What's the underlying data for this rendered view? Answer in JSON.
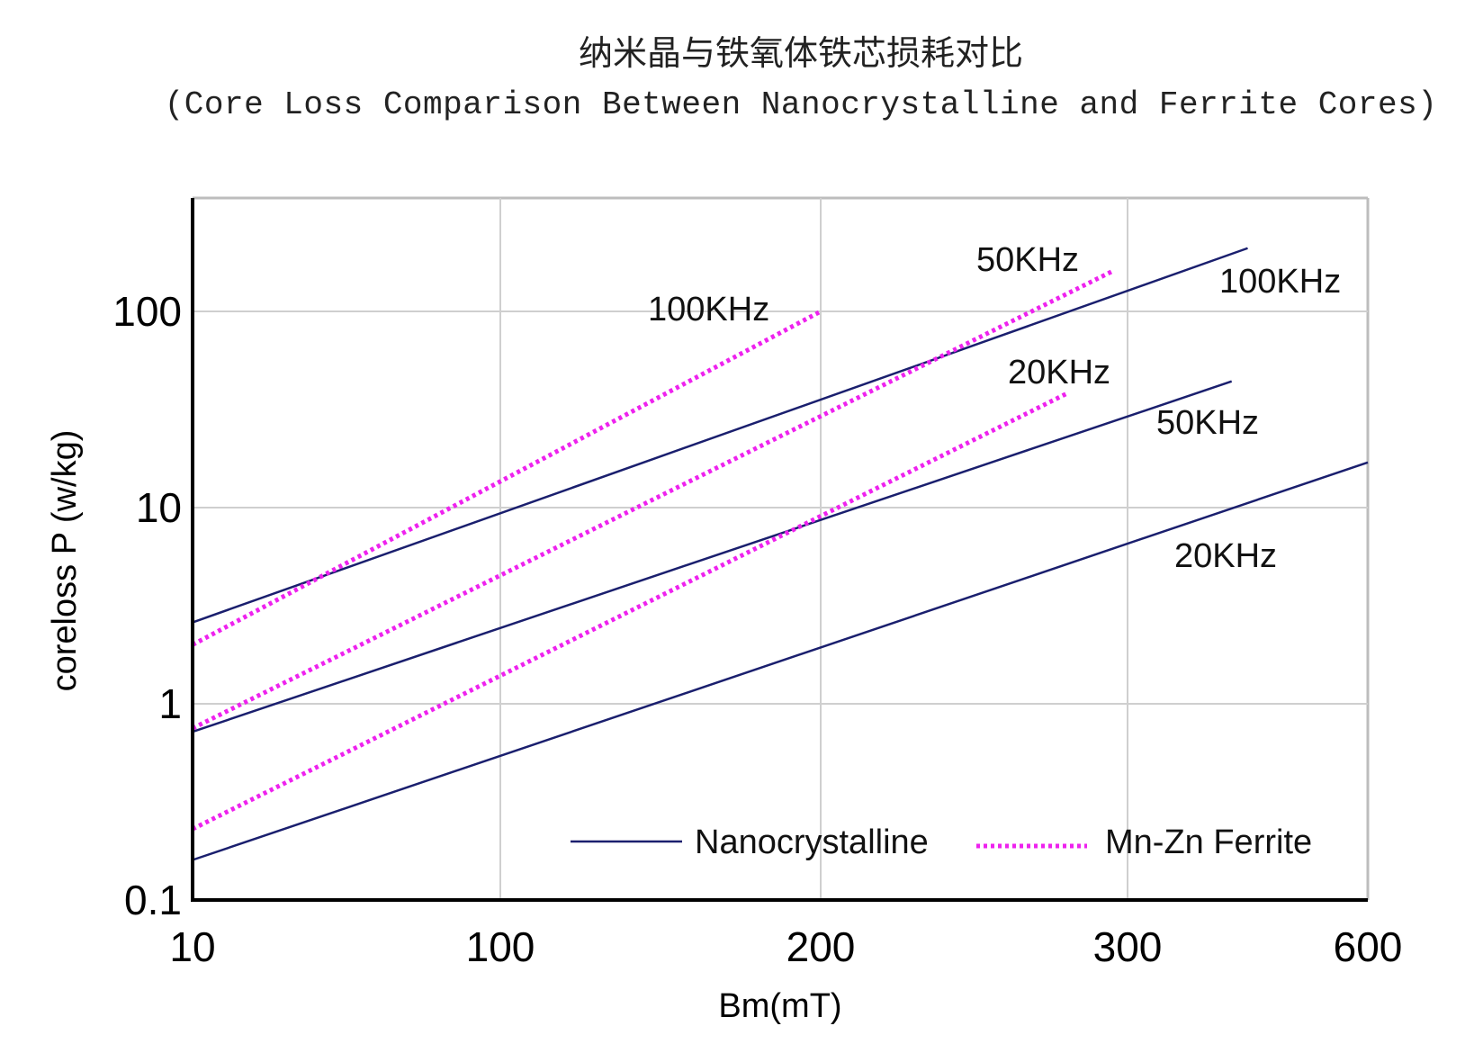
{
  "title_cn": "纳米晶与铁氧体铁芯损耗对比",
  "title_en": "(Core Loss Comparison Between Nanocrystalline and Ferrite Cores)",
  "chart_data": {
    "type": "line",
    "xlabel": "Bm(mT)",
    "ylabel": "coreloss P (w/kg)",
    "x_ticks": [
      "10",
      "100",
      "200",
      "300",
      "600"
    ],
    "y_ticks": [
      "0.1",
      "1",
      "10",
      "100"
    ],
    "y_scale": "log",
    "ylim": [
      0.1,
      350
    ],
    "grid": true,
    "legend_position": "bottom-right",
    "legend": [
      {
        "name": "Nanocrystalline",
        "style": "solid",
        "color": "#1a1f6e"
      },
      {
        "name": "Mn-Zn Ferrite",
        "style": "dotted",
        "color": "#ee22ee"
      }
    ],
    "series": [
      {
        "group": "Nanocrystalline",
        "label": "100KHz",
        "points": [
          [
            10,
            2.6
          ],
          [
            450,
            210
          ]
        ]
      },
      {
        "group": "Nanocrystalline",
        "label": "50KHz",
        "points": [
          [
            10,
            0.72
          ],
          [
            430,
            44
          ]
        ]
      },
      {
        "group": "Nanocrystalline",
        "label": "20KHz",
        "points": [
          [
            10,
            0.16
          ],
          [
            600,
            17
          ]
        ]
      },
      {
        "group": "Mn-Zn Ferrite",
        "label": "100KHz",
        "points": [
          [
            10,
            2.0
          ],
          [
            200,
            100
          ]
        ]
      },
      {
        "group": "Mn-Zn Ferrite",
        "label": "50KHz",
        "points": [
          [
            10,
            0.75
          ],
          [
            295,
            160
          ]
        ]
      },
      {
        "group": "Mn-Zn Ferrite",
        "label": "20KHz",
        "points": [
          [
            10,
            0.23
          ],
          [
            280,
            38
          ]
        ]
      }
    ]
  },
  "colors": {
    "nano": "#1a1f6e",
    "ferrite": "#ee22ee",
    "grid": "#cfcfcf",
    "axis": "#000000",
    "frame": "#bdbdbd"
  }
}
